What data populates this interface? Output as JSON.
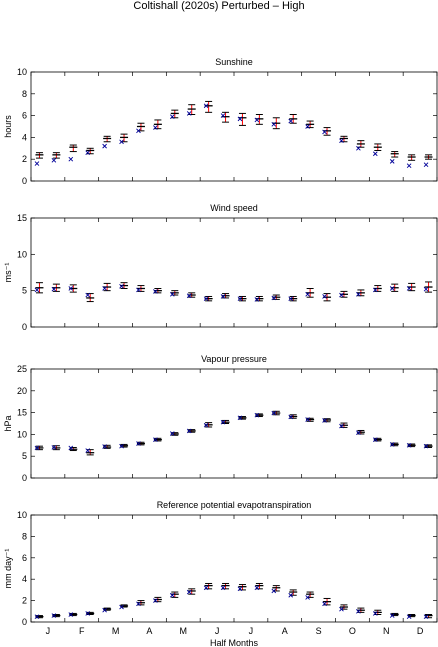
{
  "figure": {
    "title": "Coltishall (2020s) Perturbed – High"
  },
  "style": {
    "observed_color": "#000099",
    "mean_color": "#000000",
    "range_color": "#ff0000"
  },
  "chart_data": [
    {
      "type": "scatter",
      "title": "Sunshine",
      "ylabel": "hours",
      "xlabel": "",
      "ylim": [
        0,
        10
      ],
      "yticks": [
        0,
        2,
        4,
        6,
        8,
        10
      ],
      "xticks": [
        "J",
        "F",
        "M",
        "A",
        "M",
        "J",
        "J",
        "A",
        "S",
        "O",
        "N",
        "D"
      ],
      "series": [
        {
          "role": "observed",
          "values": [
            1.6,
            1.9,
            2.0,
            2.6,
            3.2,
            3.6,
            4.6,
            4.9,
            5.9,
            6.2,
            6.9,
            6.0,
            5.7,
            5.6,
            5.2,
            5.5,
            5.0,
            4.5,
            3.7,
            3.0,
            2.5,
            1.8,
            1.4,
            1.5
          ]
        },
        {
          "role": "mean",
          "values": [
            2.4,
            2.4,
            3.1,
            2.8,
            3.9,
            4.0,
            5.0,
            5.2,
            6.2,
            6.6,
            6.9,
            5.9,
            5.8,
            5.7,
            5.3,
            5.7,
            5.2,
            4.6,
            3.9,
            3.4,
            3.1,
            2.5,
            2.2,
            2.2
          ]
        },
        {
          "role": "range",
          "values": [
            [
              2.1,
              2.6
            ],
            [
              2.1,
              2.6
            ],
            [
              2.7,
              3.3
            ],
            [
              2.5,
              3.0
            ],
            [
              3.6,
              4.1
            ],
            [
              3.6,
              4.3
            ],
            [
              4.6,
              5.3
            ],
            [
              4.8,
              5.6
            ],
            [
              5.8,
              6.5
            ],
            [
              6.1,
              7.0
            ],
            [
              6.3,
              7.3
            ],
            [
              5.4,
              6.3
            ],
            [
              5.1,
              6.2
            ],
            [
              5.2,
              6.1
            ],
            [
              4.8,
              5.8
            ],
            [
              5.3,
              6.1
            ],
            [
              4.9,
              5.5
            ],
            [
              4.2,
              4.9
            ],
            [
              3.6,
              4.1
            ],
            [
              3.1,
              3.7
            ],
            [
              2.8,
              3.4
            ],
            [
              2.2,
              2.7
            ],
            [
              1.9,
              2.4
            ],
            [
              2.0,
              2.4
            ]
          ]
        }
      ]
    },
    {
      "type": "scatter",
      "title": "Wind speed",
      "ylabel": "ms⁻¹",
      "xlabel": "",
      "ylim": [
        0,
        15
      ],
      "yticks": [
        0,
        5,
        10,
        15
      ],
      "xticks": [
        "J",
        "F",
        "M",
        "A",
        "M",
        "J",
        "J",
        "A",
        "S",
        "O",
        "N",
        "D"
      ],
      "series": [
        {
          "role": "observed",
          "values": [
            5.1,
            5.2,
            5.3,
            4.4,
            5.3,
            5.6,
            5.1,
            4.9,
            4.5,
            4.3,
            3.9,
            4.2,
            3.9,
            3.8,
            4.0,
            3.9,
            4.5,
            4.2,
            4.4,
            4.5,
            5.1,
            5.3,
            5.3,
            5.2
          ]
        },
        {
          "role": "mean",
          "values": [
            5.4,
            5.4,
            5.3,
            4.0,
            5.5,
            5.7,
            5.3,
            5.0,
            4.7,
            4.4,
            3.9,
            4.3,
            3.9,
            3.9,
            4.1,
            3.9,
            4.7,
            4.1,
            4.5,
            4.7,
            5.3,
            5.4,
            5.5,
            5.5
          ]
        },
        {
          "role": "range",
          "values": [
            [
              4.7,
              6.1
            ],
            [
              4.9,
              5.9
            ],
            [
              4.8,
              5.8
            ],
            [
              3.5,
              4.6
            ],
            [
              5.0,
              6.0
            ],
            [
              5.3,
              6.1
            ],
            [
              4.9,
              5.7
            ],
            [
              4.7,
              5.3
            ],
            [
              4.4,
              5.0
            ],
            [
              4.1,
              4.7
            ],
            [
              3.6,
              4.2
            ],
            [
              4.0,
              4.6
            ],
            [
              3.6,
              4.2
            ],
            [
              3.6,
              4.2
            ],
            [
              3.8,
              4.4
            ],
            [
              3.6,
              4.2
            ],
            [
              4.1,
              5.3
            ],
            [
              3.6,
              4.6
            ],
            [
              4.1,
              4.9
            ],
            [
              4.3,
              5.1
            ],
            [
              4.9,
              5.7
            ],
            [
              4.9,
              5.9
            ],
            [
              5.0,
              6.0
            ],
            [
              4.8,
              6.2
            ]
          ]
        }
      ]
    },
    {
      "type": "scatter",
      "title": "Vapour pressure",
      "ylabel": "hPa",
      "xlabel": "",
      "ylim": [
        0,
        25
      ],
      "yticks": [
        0,
        5,
        10,
        15,
        20,
        25
      ],
      "xticks": [
        "J",
        "F",
        "M",
        "A",
        "M",
        "J",
        "J",
        "A",
        "S",
        "O",
        "N",
        "D"
      ],
      "series": [
        {
          "role": "observed",
          "values": [
            6.9,
            7.0,
            6.9,
            6.3,
            7.2,
            7.3,
            7.9,
            8.8,
            10.2,
            10.8,
            12.1,
            12.8,
            13.8,
            14.4,
            14.9,
            14.0,
            13.4,
            13.2,
            11.9,
            10.4,
            8.8,
            7.7,
            7.5,
            7.3
          ]
        },
        {
          "role": "mean",
          "values": [
            6.9,
            6.9,
            6.6,
            5.8,
            7.1,
            7.4,
            7.9,
            8.8,
            10.1,
            10.8,
            12.2,
            12.8,
            13.8,
            14.4,
            14.9,
            14.1,
            13.4,
            13.3,
            12.1,
            10.5,
            8.8,
            7.7,
            7.5,
            7.3
          ]
        },
        {
          "role": "range",
          "values": [
            [
              6.5,
              7.3
            ],
            [
              6.5,
              7.4
            ],
            [
              6.3,
              7.0
            ],
            [
              5.3,
              6.5
            ],
            [
              6.8,
              7.5
            ],
            [
              7.1,
              7.7
            ],
            [
              7.6,
              8.2
            ],
            [
              8.5,
              9.1
            ],
            [
              9.8,
              10.4
            ],
            [
              10.5,
              11.1
            ],
            [
              11.7,
              12.7
            ],
            [
              12.5,
              13.2
            ],
            [
              13.5,
              14.1
            ],
            [
              14.1,
              14.7
            ],
            [
              14.5,
              15.3
            ],
            [
              13.7,
              14.5
            ],
            [
              13.0,
              13.7
            ],
            [
              12.9,
              13.6
            ],
            [
              11.6,
              12.6
            ],
            [
              10.1,
              10.9
            ],
            [
              8.5,
              9.1
            ],
            [
              7.4,
              8.0
            ],
            [
              7.2,
              7.8
            ],
            [
              7.0,
              7.6
            ]
          ]
        }
      ]
    },
    {
      "type": "scatter",
      "title": "Reference potential evapotranspiration",
      "ylabel": "mm day⁻¹",
      "xlabel": "Half Months",
      "ylim": [
        0,
        10
      ],
      "yticks": [
        0,
        2,
        4,
        6,
        8,
        10
      ],
      "xticks": [
        "J",
        "F",
        "M",
        "A",
        "M",
        "J",
        "J",
        "A",
        "S",
        "O",
        "N",
        "D"
      ],
      "series": [
        {
          "role": "observed",
          "values": [
            0.5,
            0.6,
            0.7,
            0.8,
            1.1,
            1.4,
            1.7,
            2.0,
            2.5,
            2.8,
            3.2,
            3.2,
            3.1,
            3.2,
            2.9,
            2.5,
            2.3,
            1.7,
            1.2,
            1.0,
            0.8,
            0.6,
            0.5,
            0.5
          ]
        },
        {
          "role": "mean",
          "values": [
            0.5,
            0.6,
            0.7,
            0.8,
            1.2,
            1.5,
            1.8,
            2.1,
            2.6,
            2.9,
            3.4,
            3.4,
            3.3,
            3.4,
            3.2,
            2.8,
            2.6,
            1.9,
            1.4,
            1.1,
            0.9,
            0.7,
            0.6,
            0.6
          ]
        },
        {
          "role": "range",
          "values": [
            [
              0.4,
              0.6
            ],
            [
              0.5,
              0.7
            ],
            [
              0.6,
              0.8
            ],
            [
              0.7,
              0.9
            ],
            [
              1.1,
              1.3
            ],
            [
              1.4,
              1.6
            ],
            [
              1.6,
              2.0
            ],
            [
              1.9,
              2.3
            ],
            [
              2.3,
              2.8
            ],
            [
              2.6,
              3.1
            ],
            [
              3.1,
              3.6
            ],
            [
              3.1,
              3.6
            ],
            [
              3.0,
              3.5
            ],
            [
              3.1,
              3.6
            ],
            [
              2.9,
              3.4
            ],
            [
              2.5,
              3.0
            ],
            [
              2.3,
              2.8
            ],
            [
              1.6,
              2.2
            ],
            [
              1.2,
              1.6
            ],
            [
              0.9,
              1.3
            ],
            [
              0.7,
              1.1
            ],
            [
              0.6,
              0.8
            ],
            [
              0.5,
              0.7
            ],
            [
              0.4,
              0.7
            ]
          ]
        }
      ]
    }
  ]
}
